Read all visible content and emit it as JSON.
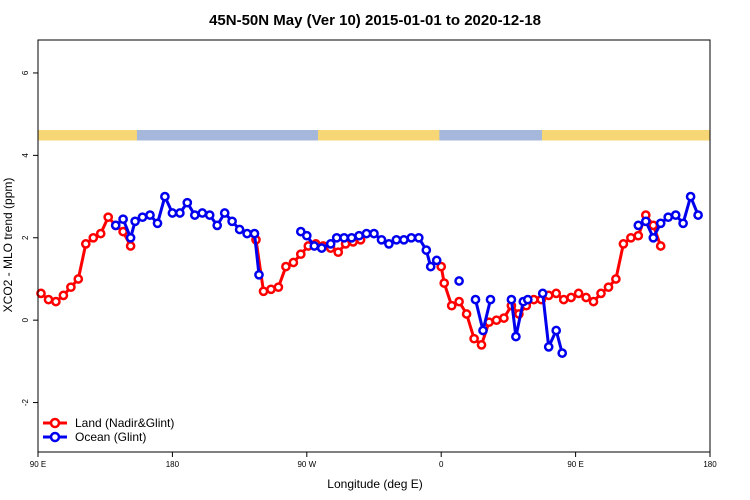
{
  "chart_data": {
    "type": "line",
    "title": "45N-50N May (Ver 10)   2015-01-01 to 2020-12-18",
    "xlabel": "Longitude (deg E)",
    "ylabel": "XCO2 - MLO trend (ppm)",
    "xlim": [
      90,
      450
    ],
    "ylim": [
      -3.2,
      6.8
    ],
    "x_ticks": [
      {
        "value": 90,
        "label": "90 E"
      },
      {
        "value": 180,
        "label": "180"
      },
      {
        "value": 270,
        "label": "90 W"
      },
      {
        "value": 360,
        "label": "0"
      },
      {
        "value": 450,
        "label": "90 E"
      },
      {
        "value": 540,
        "label": "180"
      }
    ],
    "y_ticks": [
      {
        "value": -2,
        "label": "-2"
      },
      {
        "value": 0,
        "label": "0"
      },
      {
        "value": 2,
        "label": "2"
      },
      {
        "value": 4,
        "label": "4"
      },
      {
        "value": 6,
        "label": "6"
      }
    ],
    "map_strip": {
      "land_color": "#f7d676",
      "ocean_color": "#a5b8db",
      "land_segments": [
        [
          90,
          143
        ],
        [
          240,
          305
        ],
        [
          360,
          470
        ],
        [
          498,
          540
        ]
      ]
    },
    "legend": {
      "position": "bottom-left"
    },
    "series": [
      {
        "name": "Land (Nadir&Glint)",
        "color": "#ff0000",
        "points": [
          [
            92,
            0.65
          ],
          [
            97,
            0.5
          ],
          [
            102,
            0.45
          ],
          [
            107,
            0.6
          ],
          [
            112,
            0.8
          ],
          [
            117,
            1.0
          ],
          [
            122,
            1.85
          ],
          [
            127,
            2.0
          ],
          [
            132,
            2.1
          ],
          [
            137,
            2.5
          ],
          [
            142,
            2.3
          ],
          [
            147,
            2.15
          ],
          [
            152,
            1.8
          ],
          null,
          [
            236,
            1.95
          ],
          [
            241,
            0.7
          ],
          [
            246,
            0.75
          ],
          [
            251,
            0.8
          ],
          [
            256,
            1.3
          ],
          [
            261,
            1.4
          ],
          [
            266,
            1.6
          ],
          [
            271,
            1.8
          ],
          [
            276,
            1.85
          ],
          [
            281,
            1.8
          ],
          [
            286,
            1.75
          ],
          [
            291,
            1.65
          ],
          [
            296,
            1.85
          ],
          [
            301,
            1.9
          ],
          [
            306,
            1.95
          ],
          null,
          [
            360,
            1.3
          ],
          [
            362,
            0.9
          ],
          [
            367,
            0.35
          ],
          [
            372,
            0.45
          ],
          [
            377,
            0.15
          ],
          [
            382,
            -0.45
          ],
          [
            387,
            -0.6
          ],
          [
            392,
            -0.05
          ],
          [
            397,
            0.0
          ],
          [
            402,
            0.05
          ],
          [
            407,
            0.35
          ],
          [
            412,
            0.15
          ],
          [
            417,
            0.35
          ],
          [
            422,
            0.5
          ],
          [
            427,
            0.5
          ],
          [
            432,
            0.6
          ],
          [
            437,
            0.65
          ],
          [
            442,
            0.5
          ],
          [
            447,
            0.55
          ],
          [
            452,
            0.65
          ],
          [
            457,
            0.55
          ],
          [
            462,
            0.45
          ],
          [
            467,
            0.65
          ],
          [
            472,
            0.8
          ],
          [
            477,
            1.0
          ],
          [
            482,
            1.85
          ],
          [
            487,
            2.0
          ],
          [
            492,
            2.05
          ],
          [
            497,
            2.55
          ],
          [
            502,
            2.3
          ],
          [
            507,
            1.8
          ]
        ]
      },
      {
        "name": "Ocean (Glint)",
        "color": "#0000ee",
        "points": [
          [
            142,
            2.3
          ],
          [
            147,
            2.45
          ],
          [
            152,
            2.0
          ],
          [
            155,
            2.4
          ],
          [
            160,
            2.5
          ],
          [
            165,
            2.55
          ],
          [
            170,
            2.35
          ],
          [
            175,
            3.0
          ],
          [
            180,
            2.6
          ],
          [
            185,
            2.6
          ],
          [
            190,
            2.85
          ],
          [
            195,
            2.55
          ],
          [
            200,
            2.6
          ],
          [
            205,
            2.55
          ],
          [
            210,
            2.3
          ],
          [
            215,
            2.6
          ],
          [
            220,
            2.4
          ],
          [
            225,
            2.2
          ],
          [
            230,
            2.1
          ],
          [
            235,
            2.1
          ],
          [
            238,
            1.1
          ],
          null,
          [
            266,
            2.15
          ],
          [
            270,
            2.05
          ],
          [
            275,
            1.8
          ],
          [
            280,
            1.75
          ],
          [
            286,
            1.85
          ],
          [
            290,
            2.0
          ],
          [
            295,
            2.0
          ],
          [
            300,
            2.0
          ],
          [
            305,
            2.05
          ],
          [
            310,
            2.1
          ],
          [
            315,
            2.1
          ],
          [
            320,
            1.95
          ],
          [
            325,
            1.85
          ],
          [
            330,
            1.95
          ],
          [
            335,
            1.95
          ],
          [
            340,
            2.0
          ],
          [
            345,
            2.0
          ],
          [
            350,
            1.7
          ],
          [
            353,
            1.3
          ],
          [
            357,
            1.45
          ],
          null,
          [
            372,
            0.95
          ],
          null,
          [
            383,
            0.5
          ],
          [
            388,
            -0.25
          ],
          [
            393,
            0.5
          ],
          null,
          [
            407,
            0.5
          ],
          [
            410,
            -0.4
          ],
          [
            415,
            0.45
          ],
          [
            418,
            0.5
          ],
          null,
          [
            428,
            0.65
          ],
          [
            432,
            -0.65
          ],
          [
            437,
            -0.25
          ],
          [
            441,
            -0.8
          ],
          null,
          [
            492,
            2.3
          ],
          [
            497,
            2.4
          ],
          [
            502,
            2.0
          ],
          [
            507,
            2.35
          ],
          [
            512,
            2.5
          ],
          [
            517,
            2.55
          ],
          [
            522,
            2.35
          ],
          [
            527,
            3.0
          ],
          [
            532,
            2.55
          ]
        ]
      }
    ]
  }
}
